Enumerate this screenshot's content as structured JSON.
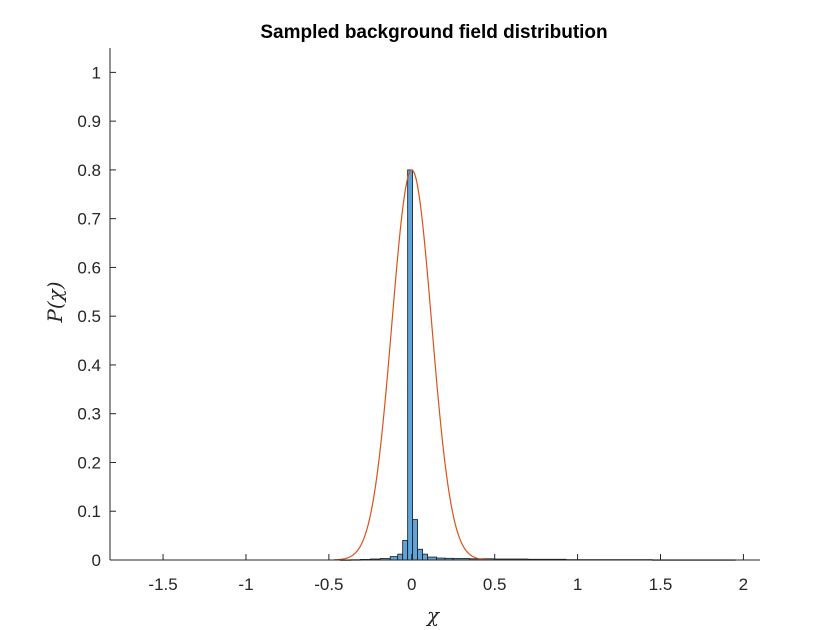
{
  "chart_data": {
    "type": "bar",
    "title": "Sampled background field distribution",
    "xlabel": "χ",
    "ylabel": "P(χ)",
    "xlim": [
      -1.82,
      2.1
    ],
    "ylim": [
      0,
      1.05
    ],
    "xticks": [
      -1.5,
      -1,
      -0.5,
      0,
      0.5,
      1,
      1.5,
      2
    ],
    "yticks": [
      0,
      0.1,
      0.2,
      0.3,
      0.4,
      0.5,
      0.6,
      0.7,
      0.8,
      0.9,
      1
    ],
    "xtick_labels": [
      "-1.5",
      "-1",
      "-0.5",
      "0",
      "0.5",
      "1",
      "1.5",
      "2"
    ],
    "ytick_labels": [
      "0",
      "0.1",
      "0.2",
      "0.3",
      "0.4",
      "0.5",
      "0.6",
      "0.7",
      "0.8",
      "0.9",
      "1"
    ],
    "series": [
      {
        "kind": "histogram",
        "color": "#5ea4da",
        "bins": [
          {
            "x0": -0.43,
            "x1": -0.37,
            "value": 0.0003
          },
          {
            "x0": -0.37,
            "x1": -0.31,
            "value": 0.0006
          },
          {
            "x0": -0.31,
            "x1": -0.25,
            "value": 0.0012
          },
          {
            "x0": -0.25,
            "x1": -0.19,
            "value": 0.002
          },
          {
            "x0": -0.19,
            "x1": -0.13,
            "value": 0.003
          },
          {
            "x0": -0.13,
            "x1": -0.085,
            "value": 0.007
          },
          {
            "x0": -0.085,
            "x1": -0.055,
            "value": 0.012
          },
          {
            "x0": -0.055,
            "x1": -0.025,
            "value": 0.04
          },
          {
            "x0": -0.025,
            "x1": 0.005,
            "value": 0.8
          },
          {
            "x0": 0.005,
            "x1": 0.035,
            "value": 0.083
          },
          {
            "x0": 0.035,
            "x1": 0.065,
            "value": 0.022
          },
          {
            "x0": 0.065,
            "x1": 0.095,
            "value": 0.012
          },
          {
            "x0": 0.095,
            "x1": 0.15,
            "value": 0.006
          },
          {
            "x0": 0.15,
            "x1": 0.2,
            "value": 0.004
          },
          {
            "x0": 0.2,
            "x1": 0.25,
            "value": 0.0035
          },
          {
            "x0": 0.25,
            "x1": 0.35,
            "value": 0.003
          },
          {
            "x0": 0.35,
            "x1": 0.5,
            "value": 0.0025
          },
          {
            "x0": 0.5,
            "x1": 0.7,
            "value": 0.002
          },
          {
            "x0": 0.7,
            "x1": 0.93,
            "value": 0.0015
          },
          {
            "x0": 0.93,
            "x1": 1.45,
            "value": 0.0008
          },
          {
            "x0": 1.45,
            "x1": 1.95,
            "value": 0.0004
          }
        ]
      },
      {
        "kind": "curve",
        "color": "#d95319",
        "shape": "gaussian",
        "peak": 0.8,
        "mean": 0.0,
        "sigma": 0.12,
        "x_range": [
          -0.47,
          0.47
        ]
      }
    ]
  }
}
